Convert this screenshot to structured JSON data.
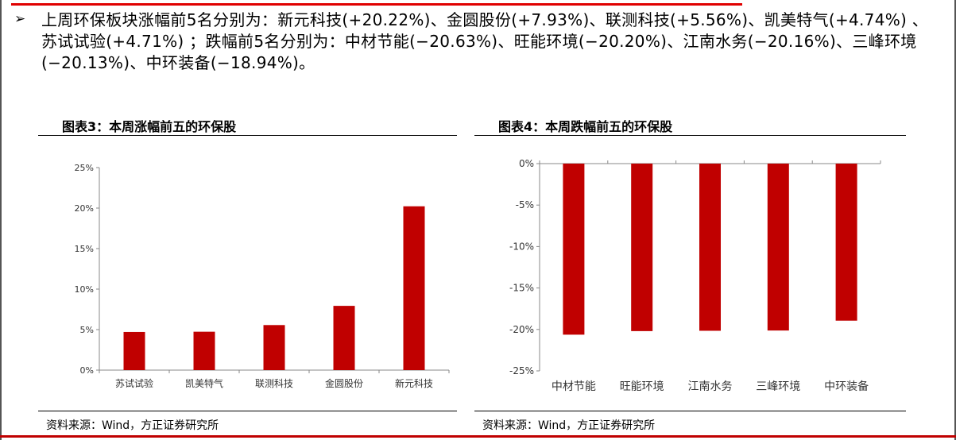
{
  "summary": {
    "bullet": "➢",
    "text": "上周环保板块涨幅前5名分别为：新元科技(+20.22%)、金圆股份(+7.93%)、联测科技(+5.56%)、凯美特气(+4.74%) 、苏试试验(+4.71%) ；跌幅前5名分别为：中材节能(−20.63%)、旺能环境(−20.20%)、江南水务(−20.16%)、三峰环境(−20.13%)、中环装备(−18.94%)。"
  },
  "left": {
    "title": "图表3：本周涨幅前五的环保股",
    "source": "资料来源：Wind，方正证券研究所"
  },
  "right": {
    "title": "图表4：本周跌幅前五的环保股",
    "source": "资料来源：Wind，方正证券研究所"
  },
  "colors": {
    "bar": "#c00000",
    "accent": "#e00000"
  },
  "chart_data": [
    {
      "type": "bar",
      "title": "图表3：本周涨幅前五的环保股",
      "categories": [
        "苏试试验",
        "凯美特气",
        "联测科技",
        "金圆股份",
        "新元科技"
      ],
      "values": [
        4.71,
        4.74,
        5.56,
        7.93,
        20.22
      ],
      "unit": "%",
      "ylim": [
        0,
        25
      ],
      "yticks": [
        0,
        5,
        10,
        15,
        20,
        25
      ],
      "ytick_labels": [
        "0%",
        "5%",
        "10%",
        "15%",
        "20%",
        "25%"
      ],
      "grid": false,
      "legend": "none"
    },
    {
      "type": "bar",
      "title": "图表4：本周跌幅前五的环保股",
      "categories": [
        "中材节能",
        "旺能环境",
        "江南水务",
        "三峰环境",
        "中环装备"
      ],
      "values": [
        -20.63,
        -20.2,
        -20.16,
        -20.13,
        -18.94
      ],
      "unit": "%",
      "ylim": [
        -25,
        0
      ],
      "yticks": [
        0,
        -5,
        -10,
        -15,
        -20,
        -25
      ],
      "ytick_labels": [
        "0%",
        "-5%",
        "-10%",
        "-15%",
        "-20%",
        "-25%"
      ],
      "grid": false,
      "legend": "none"
    }
  ]
}
